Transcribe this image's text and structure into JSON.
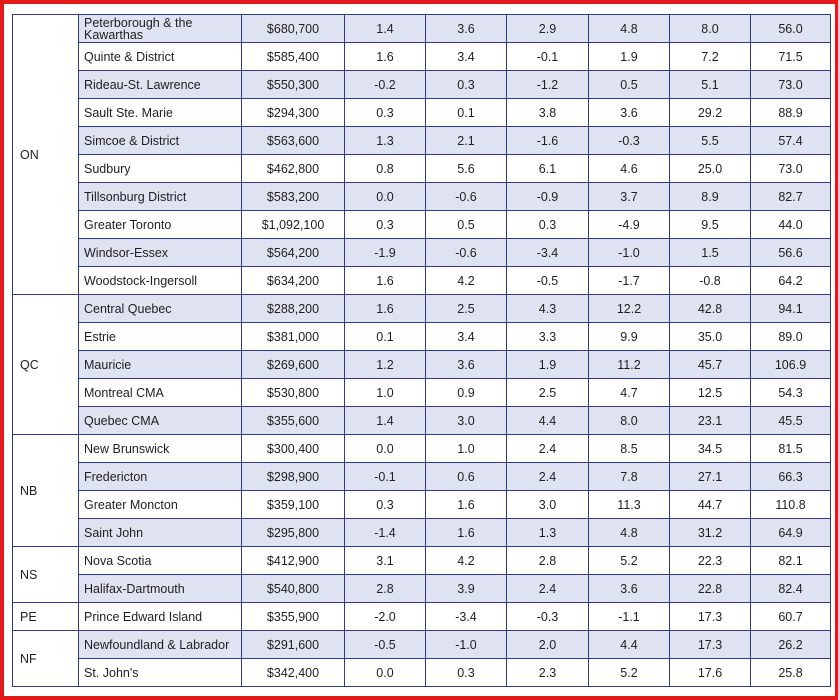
{
  "groups": [
    {
      "province": "ON",
      "rows": [
        {
          "region": "Peterborough & the Kawarthas",
          "price": "$680,700",
          "values": [
            "1.4",
            "3.6",
            "2.9",
            "4.8",
            "8.0",
            "56.0"
          ]
        },
        {
          "region": "Quinte & District",
          "price": "$585,400",
          "values": [
            "1.6",
            "3.4",
            "-0.1",
            "1.9",
            "7.2",
            "71.5"
          ]
        },
        {
          "region": "Rideau-St. Lawrence",
          "price": "$550,300",
          "values": [
            "-0.2",
            "0.3",
            "-1.2",
            "0.5",
            "5.1",
            "73.0"
          ]
        },
        {
          "region": "Sault Ste. Marie",
          "price": "$294,300",
          "values": [
            "0.3",
            "0.1",
            "3.8",
            "3.6",
            "29.2",
            "88.9"
          ]
        },
        {
          "region": "Simcoe & District",
          "price": "$563,600",
          "values": [
            "1.3",
            "2.1",
            "-1.6",
            "-0.3",
            "5.5",
            "57.4"
          ]
        },
        {
          "region": "Sudbury",
          "price": "$462,800",
          "values": [
            "0.8",
            "5.6",
            "6.1",
            "4.6",
            "25.0",
            "73.0"
          ]
        },
        {
          "region": "Tillsonburg District",
          "price": "$583,200",
          "values": [
            "0.0",
            "-0.6",
            "-0.9",
            "3.7",
            "8.9",
            "82.7"
          ]
        },
        {
          "region": "Greater Toronto",
          "price": "$1,092,100",
          "values": [
            "0.3",
            "0.5",
            "0.3",
            "-4.9",
            "9.5",
            "44.0"
          ]
        },
        {
          "region": "Windsor-Essex",
          "price": "$564,200",
          "values": [
            "-1.9",
            "-0.6",
            "-3.4",
            "-1.0",
            "1.5",
            "56.6"
          ]
        },
        {
          "region": "Woodstock-Ingersoll",
          "price": "$634,200",
          "values": [
            "1.6",
            "4.2",
            "-0.5",
            "-1.7",
            "-0.8",
            "64.2"
          ]
        }
      ]
    },
    {
      "province": "QC",
      "rows": [
        {
          "region": "Central Quebec",
          "price": "$288,200",
          "values": [
            "1.6",
            "2.5",
            "4.3",
            "12.2",
            "42.8",
            "94.1"
          ]
        },
        {
          "region": "Estrie",
          "price": "$381,000",
          "values": [
            "0.1",
            "3.4",
            "3.3",
            "9.9",
            "35.0",
            "89.0"
          ]
        },
        {
          "region": "Mauricie",
          "price": "$269,600",
          "values": [
            "1.2",
            "3.6",
            "1.9",
            "11.2",
            "45.7",
            "106.9"
          ]
        },
        {
          "region": "Montreal CMA",
          "price": "$530,800",
          "values": [
            "1.0",
            "0.9",
            "2.5",
            "4.7",
            "12.5",
            "54.3"
          ]
        },
        {
          "region": "Quebec CMA",
          "price": "$355,600",
          "values": [
            "1.4",
            "3.0",
            "4.4",
            "8.0",
            "23.1",
            "45.5"
          ]
        }
      ]
    },
    {
      "province": "NB",
      "rows": [
        {
          "region": "New Brunswick",
          "price": "$300,400",
          "values": [
            "0.0",
            "1.0",
            "2.4",
            "8.5",
            "34.5",
            "81.5"
          ]
        },
        {
          "region": "Fredericton",
          "price": "$298,900",
          "values": [
            "-0.1",
            "0.6",
            "2.4",
            "7.8",
            "27.1",
            "66.3"
          ]
        },
        {
          "region": "Greater Moncton",
          "price": "$359,100",
          "values": [
            "0.3",
            "1.6",
            "3.0",
            "11.3",
            "44.7",
            "110.8"
          ]
        },
        {
          "region": "Saint John",
          "price": "$295,800",
          "values": [
            "-1.4",
            "1.6",
            "1.3",
            "4.8",
            "31.2",
            "64.9"
          ]
        }
      ]
    },
    {
      "province": "NS",
      "rows": [
        {
          "region": "Nova Scotia",
          "price": "$412,900",
          "values": [
            "3.1",
            "4.2",
            "2.8",
            "5.2",
            "22.3",
            "82.1"
          ]
        },
        {
          "region": "Halifax-Dartmouth",
          "price": "$540,800",
          "values": [
            "2.8",
            "3.9",
            "2.4",
            "3.6",
            "22.8",
            "82.4"
          ]
        }
      ]
    },
    {
      "province": "PE",
      "rows": [
        {
          "region": "Prince Edward Island",
          "price": "$355,900",
          "values": [
            "-2.0",
            "-3.4",
            "-0.3",
            "-1.1",
            "17.3",
            "60.7"
          ]
        }
      ]
    },
    {
      "province": "NF",
      "rows": [
        {
          "region": "Newfoundland & Labrador",
          "price": "$291,600",
          "values": [
            "-0.5",
            "-1.0",
            "2.0",
            "4.4",
            "17.3",
            "26.2"
          ]
        },
        {
          "region": "St. John's",
          "price": "$342,400",
          "values": [
            "0.0",
            "0.3",
            "2.3",
            "5.2",
            "17.6",
            "25.8"
          ]
        }
      ]
    }
  ],
  "colors": {
    "frame": "#e41a1a",
    "border": "#2e3b87",
    "shade": "#dfe3f1"
  }
}
